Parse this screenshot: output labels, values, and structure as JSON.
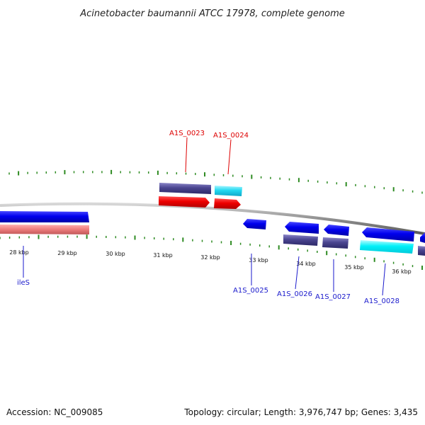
{
  "title": "Acinetobacter baumannii ATCC 17978, complete genome",
  "footer": {
    "accession": "Accession: NC_009085",
    "summary": "Topology: circular; Length: 3,976,747 bp; Genes: 3,435"
  },
  "colors": {
    "backbone": "#8c8c8c",
    "tick": "#2e8b22",
    "forward_label": "#dd0000",
    "reverse_label": "#1a1acc"
  },
  "axis": {
    "unit": "kbp",
    "ticks": [
      {
        "label": "28 kbp"
      },
      {
        "label": "29 kbp"
      },
      {
        "label": "30 kbp"
      },
      {
        "label": "31 kbp"
      },
      {
        "label": "32 kbp"
      },
      {
        "label": "33 kbp"
      },
      {
        "label": "34 kbp"
      },
      {
        "label": "35 kbp"
      },
      {
        "label": "36 kbp"
      }
    ]
  },
  "gene_labels": [
    {
      "name": "A1S_0023",
      "strand": "forward"
    },
    {
      "name": "A1S_0024",
      "strand": "forward"
    },
    {
      "name": "ileS",
      "strand": "reverse"
    },
    {
      "name": "A1S_0025",
      "strand": "reverse"
    },
    {
      "name": "A1S_0026",
      "strand": "reverse"
    },
    {
      "name": "A1S_0027",
      "strand": "reverse"
    },
    {
      "name": "A1S_0028",
      "strand": "reverse"
    }
  ]
}
